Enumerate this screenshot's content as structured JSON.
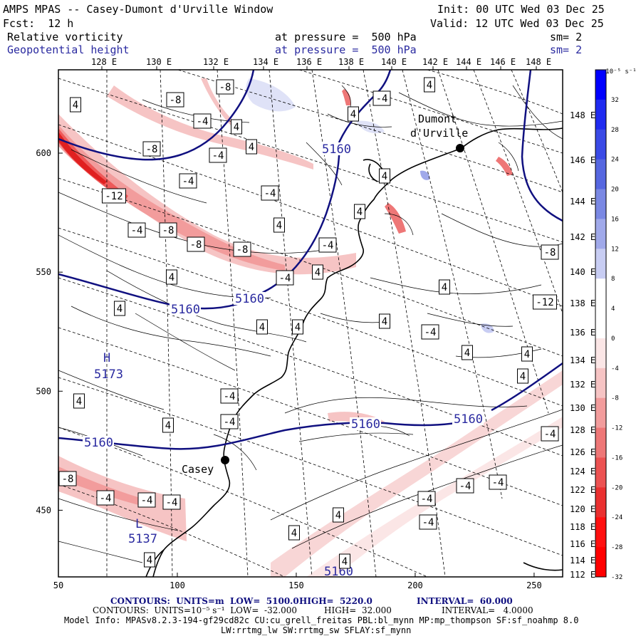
{
  "header": {
    "title": "AMPS MPAS -- Casey-Dumont d'Urville Window",
    "init": "Init: 00 UTC Wed 03 Dec 25",
    "fcst": "Fcst:  12 h",
    "valid": "Valid: 12 UTC Wed 03 Dec 25",
    "field1_name": "Relative vorticity",
    "field1_level": "at pressure =  500 hPa",
    "field1_sm": "sm= 2",
    "field2_name": "Geopotential height",
    "field2_level": "at pressure =  500 hPa",
    "field2_sm": "sm= 2"
  },
  "longitude_labels": [
    "128 E",
    "130 E",
    "132 E",
    "134 E",
    "136 E",
    "138 E",
    "140 E",
    "142 E",
    "144 E",
    "146 E",
    "148 E"
  ],
  "latitude_labels": [
    "148 E",
    "146 E",
    "144 E",
    "142 E",
    "140 E",
    "138 E",
    "136 E",
    "134 E",
    "132 E",
    "130 E",
    "128 E",
    "126 E",
    "124 E",
    "122 E",
    "120 E",
    "118 E",
    "116 E",
    "114 E",
    "112 E"
  ],
  "grid_axes": {
    "x_ticks": [
      "50",
      "100",
      "150",
      "200",
      "250"
    ],
    "y_ticks": [
      "600",
      "550",
      "500",
      "450"
    ]
  },
  "colorbar": {
    "unit": "10⁻⁵ s⁻¹",
    "labels": [
      "32",
      "28",
      "24",
      "20",
      "16",
      "12",
      "8",
      "4",
      "0",
      "-4",
      "-8",
      "-12",
      "-16",
      "-20",
      "-24",
      "-28",
      "-32"
    ],
    "colors": [
      "#0000ff",
      "#1f2bf0",
      "#3a4ae6",
      "#5667e0",
      "#7a88e3",
      "#a0a9ea",
      "#c8cdf3",
      "#ffffff",
      "#ffffff",
      "#fbe6e6",
      "#f6c4c4",
      "#f29c9c",
      "#ee7777",
      "#ec5252",
      "#ea3030",
      "#ff1010",
      "#ff0000"
    ]
  },
  "stations": [
    {
      "name": "Dumont",
      "name2": "d'Urville"
    },
    {
      "name": "Casey"
    }
  ],
  "height_labels": [
    "5160",
    "5160",
    "5160",
    "5160",
    "5160",
    "5160"
  ],
  "extrema": {
    "high_letter": "H",
    "high_value": "5173",
    "low_letter": "L",
    "low_value": "5137",
    "low2_value": "5160"
  },
  "vort_labels": [
    "4",
    "-8",
    "-8",
    "4",
    "-4",
    "4",
    "4",
    "-4",
    "-8",
    "-4",
    "-4",
    "4",
    "-4",
    "-12",
    "-4",
    "-8",
    "-8",
    "-8",
    "4",
    "-4",
    "4",
    "4",
    "-4",
    "4",
    "4",
    "4",
    "4",
    "4",
    "4",
    "-4",
    "4",
    "4",
    "-12",
    "-8",
    "-8",
    "-4",
    "-4",
    "-4",
    "-4",
    "-4",
    "-4",
    "-4",
    "-4",
    "4",
    "4",
    "4",
    "4",
    "4",
    "-4",
    "4",
    "-4",
    "4",
    "4"
  ],
  "footer": {
    "line1_a": "CONTOURS:  UNITS=m  LOW=  5100.0",
    "line1_b": "HIGH=  5220.0",
    "line1_c": "INTERVAL=  60.000",
    "line2_a": "CONTOURS:  UNITS=10⁻⁵ s⁻¹  LOW=  -32.000",
    "line2_b": "HIGH=  32.000",
    "line2_c": "INTERVAL=   4.0000",
    "line3": "Model Info: MPASv8.2.3-194-gf29cd82c CU:cu_grell_freitas PBL:bl_mynn MP:mp_thompson SF:sf_noahmp 8.0",
    "line4": "LW:rrtmg_lw SW:rrtmg_sw SFLAY:sf_mynn"
  }
}
